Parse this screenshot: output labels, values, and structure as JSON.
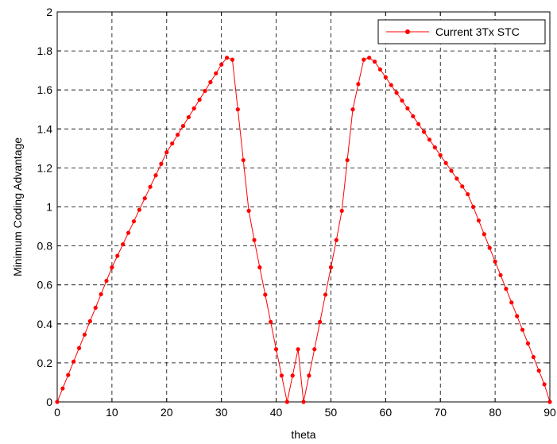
{
  "chart_data": {
    "type": "line",
    "xlabel": "theta",
    "ylabel": "Minimum Coding Advantage",
    "xlim": [
      0,
      90
    ],
    "ylim": [
      0,
      2
    ],
    "xticks": [
      0,
      10,
      20,
      30,
      40,
      50,
      60,
      70,
      80,
      90
    ],
    "yticks": [
      0,
      0.2,
      0.4,
      0.6,
      0.8,
      1,
      1.2,
      1.4,
      1.6,
      1.8,
      2
    ],
    "xtick_labels": [
      "0",
      "10",
      "20",
      "30",
      "40",
      "50",
      "60",
      "70",
      "80",
      "90"
    ],
    "ytick_labels": [
      "0",
      "0.2",
      "0.4",
      "0.6",
      "0.8",
      "1",
      "1.2",
      "1.4",
      "1.6",
      "1.8",
      "2"
    ],
    "grid": true,
    "legend_position": "top-right",
    "series": [
      {
        "name": "Current 3Tx STC",
        "color": "#ff0000",
        "marker": "dot",
        "x": [
          0,
          1,
          2,
          3,
          4,
          5,
          6,
          7,
          8,
          9,
          10,
          11,
          12,
          13,
          14,
          15,
          16,
          17,
          18,
          19,
          20,
          21,
          22,
          23,
          24,
          25,
          26,
          27,
          28,
          29,
          30,
          31,
          32,
          33,
          34,
          35,
          36,
          37,
          38,
          39,
          40,
          41,
          42,
          43,
          44,
          45,
          46,
          47,
          48,
          49,
          50,
          51,
          52,
          53,
          54,
          55,
          56,
          57,
          58,
          59,
          60,
          61,
          62,
          63,
          64,
          65,
          66,
          67,
          68,
          69,
          70,
          71,
          72,
          73,
          74,
          75,
          76,
          77,
          78,
          79,
          80,
          81,
          82,
          83,
          84,
          85,
          86,
          87,
          88,
          89,
          90
        ],
        "y": [
          0,
          0.069,
          0.138,
          0.207,
          0.276,
          0.345,
          0.414,
          0.483,
          0.552,
          0.621,
          0.69,
          0.749,
          0.808,
          0.867,
          0.926,
          0.985,
          1.044,
          1.103,
          1.162,
          1.221,
          1.28,
          1.325,
          1.37,
          1.415,
          1.46,
          1.505,
          1.55,
          1.595,
          1.64,
          1.685,
          1.73,
          1.765,
          1.755,
          1.5,
          1.24,
          0.98,
          0.83,
          0.69,
          0.55,
          0.41,
          0.27,
          0.135,
          0,
          0.135,
          0.27,
          0,
          0.135,
          0.27,
          0.41,
          0.55,
          0.69,
          0.83,
          0.98,
          1.24,
          1.5,
          1.63,
          1.755,
          1.765,
          1.745,
          1.705,
          1.665,
          1.625,
          1.585,
          1.545,
          1.505,
          1.465,
          1.425,
          1.385,
          1.345,
          1.305,
          1.265,
          1.225,
          1.185,
          1.145,
          1.105,
          1.065,
          1.0,
          0.93,
          0.86,
          0.79,
          0.72,
          0.65,
          0.58,
          0.51,
          0.44,
          0.37,
          0.3,
          0.23,
          0.16,
          0.09,
          0
        ]
      }
    ]
  }
}
